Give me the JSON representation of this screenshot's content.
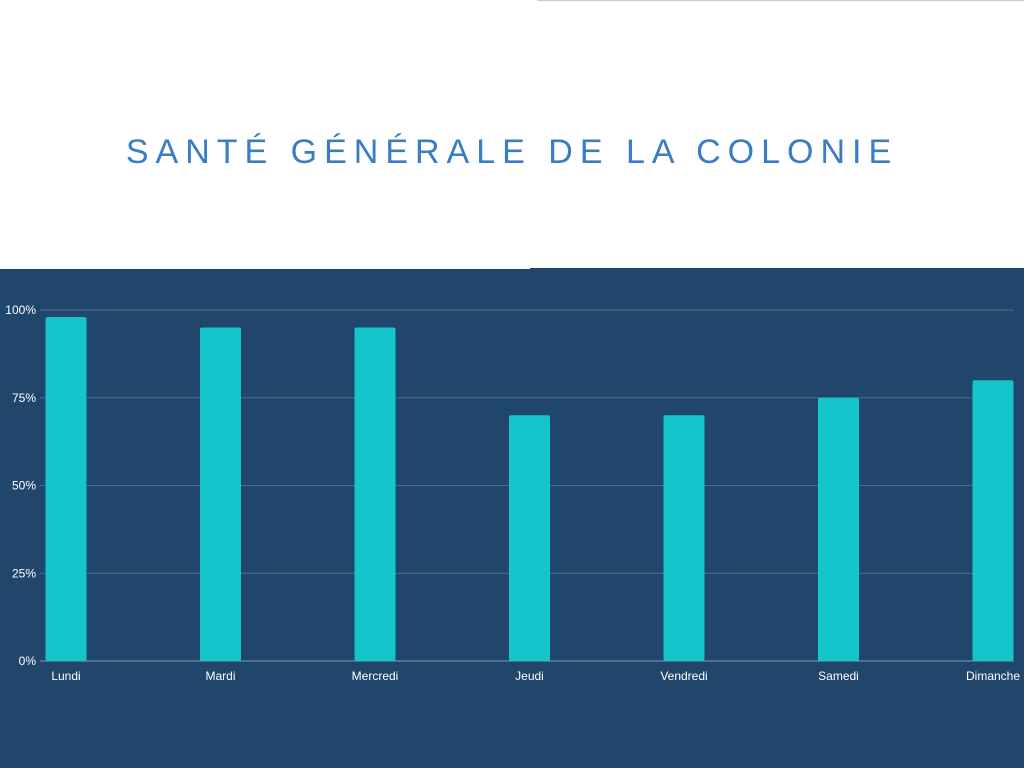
{
  "chart_data": {
    "type": "bar",
    "title": "SANTÉ GÉNÉRALE DE LA COLONIE",
    "categories": [
      "Lundi",
      "Mardi",
      "Mercredi",
      "Jeudi",
      "Vendredi",
      "Samedi",
      "Dimanche"
    ],
    "values": [
      0.98,
      0.95,
      0.95,
      0.7,
      0.7,
      0.75,
      0.8
    ],
    "ylim": [
      0,
      1
    ],
    "yticks": [
      0,
      0.25,
      0.5,
      0.75,
      1
    ],
    "ytick_labels": [
      "0%",
      "25%",
      "50%",
      "75%",
      "100%"
    ],
    "grid": true,
    "legend": "none"
  },
  "colors": {
    "bar": "#14c6cc",
    "panel": "#21466b",
    "title": "#3b7cc6",
    "grid": "#4a6d92",
    "text": "#ffffff"
  }
}
